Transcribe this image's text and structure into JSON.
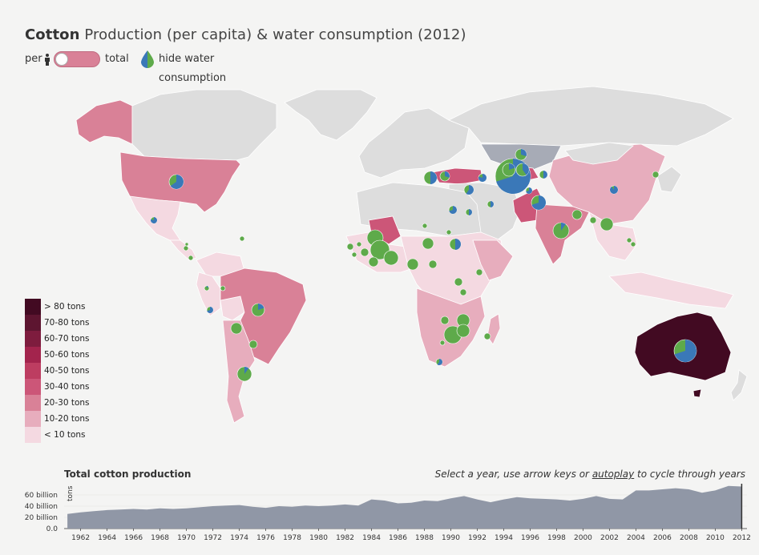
{
  "header": {
    "title_bold": "Cotton",
    "title_rest": " Production (per capita) & water consumption (2012)"
  },
  "controls": {
    "per_label": "per",
    "person_icon": "person-icon",
    "total_label": "total",
    "toggle_state": "per capita",
    "water_icon": "water-drop-icon",
    "water_label": "hide water consumption"
  },
  "colors": {
    "land": "#dddddd",
    "selected_region": "#a7abb6",
    "pie_blue": "#3a78b8",
    "pie_green": "#5eaa4a",
    "timeline_area": "#9097a6"
  },
  "legend": [
    {
      "label": "> 80 tons",
      "color": "#420a22"
    },
    {
      "label": "70-80 tons",
      "color": "#5d1530"
    },
    {
      "label": "60-70 tons",
      "color": "#7e1c3e"
    },
    {
      "label": "50-60 tons",
      "color": "#a3244d"
    },
    {
      "label": "40-50 tons",
      "color": "#bd3d61"
    },
    {
      "label": "30-40 tons",
      "color": "#cc5678"
    },
    {
      "label": "20-30 tons",
      "color": "#d98197"
    },
    {
      "label": "10-20 tons",
      "color": "#e7adbd"
    },
    {
      "label": "< 10 tons",
      "color": "#f4d9e1"
    }
  ],
  "timeline": {
    "title": "Total cotton production",
    "hint_pre": "Select a year, use arrow keys or ",
    "hint_link": "autoplay",
    "hint_post": " to cycle through years",
    "y_unit": "tons",
    "y_ticks": [
      "60 billion",
      "40 billion",
      "20 billion",
      "0.0"
    ],
    "x_ticks": [
      "1962",
      "1964",
      "1966",
      "1968",
      "1970",
      "1972",
      "1974",
      "1976",
      "1978",
      "1980",
      "1982",
      "1984",
      "1986",
      "1988",
      "1990",
      "1992",
      "1994",
      "1996",
      "1998",
      "2000",
      "2002",
      "2004",
      "2006",
      "2008",
      "2010",
      "2012"
    ],
    "selected_year": 2012,
    "chart_data": {
      "type": "area",
      "x": [
        1961,
        1962,
        1963,
        1964,
        1965,
        1966,
        1967,
        1968,
        1969,
        1970,
        1971,
        1972,
        1973,
        1974,
        1975,
        1976,
        1977,
        1978,
        1979,
        1980,
        1981,
        1982,
        1983,
        1984,
        1985,
        1986,
        1987,
        1988,
        1989,
        1990,
        1991,
        1992,
        1993,
        1994,
        1995,
        1996,
        1997,
        1998,
        1999,
        2000,
        2001,
        2002,
        2003,
        2004,
        2005,
        2006,
        2007,
        2008,
        2009,
        2010,
        2011,
        2012
      ],
      "y": [
        26,
        29,
        31,
        33,
        34,
        35,
        34,
        36,
        35,
        36,
        38,
        40,
        41,
        42,
        39,
        37,
        40,
        39,
        41,
        40,
        41,
        43,
        41,
        52,
        50,
        45,
        46,
        50,
        49,
        54,
        58,
        52,
        47,
        52,
        56,
        54,
        53,
        52,
        50,
        53,
        58,
        53,
        52,
        68,
        68,
        70,
        72,
        70,
        64,
        68,
        76,
        75
      ],
      "y_unit": "billion tons",
      "ylim": [
        0,
        80
      ]
    }
  }
}
